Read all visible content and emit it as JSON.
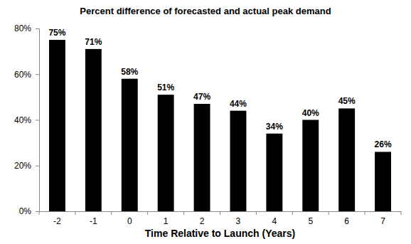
{
  "chart_data": {
    "type": "bar",
    "title": "Percent difference of forecasted and actual peak demand",
    "x_label": "Time Relative to Launch (Years)",
    "categories": [
      "-2",
      "-1",
      "0",
      "1",
      "2",
      "3",
      "4",
      "5",
      "6",
      "7"
    ],
    "values": [
      75,
      71,
      58,
      51,
      47,
      44,
      34,
      40,
      45,
      26
    ],
    "value_labels": [
      "75%",
      "71%",
      "58%",
      "51%",
      "47%",
      "44%",
      "34%",
      "40%",
      "45%",
      "26%"
    ],
    "color": "#000000",
    "ylim": [
      0,
      80
    ],
    "yticks": [
      {
        "value": 0,
        "label": "0%"
      },
      {
        "value": 20,
        "label": "20%"
      },
      {
        "value": 40,
        "label": "40%"
      },
      {
        "value": 60,
        "label": "60%"
      },
      {
        "value": 80,
        "label": "80%"
      }
    ],
    "grid": false,
    "data_labels": true
  }
}
